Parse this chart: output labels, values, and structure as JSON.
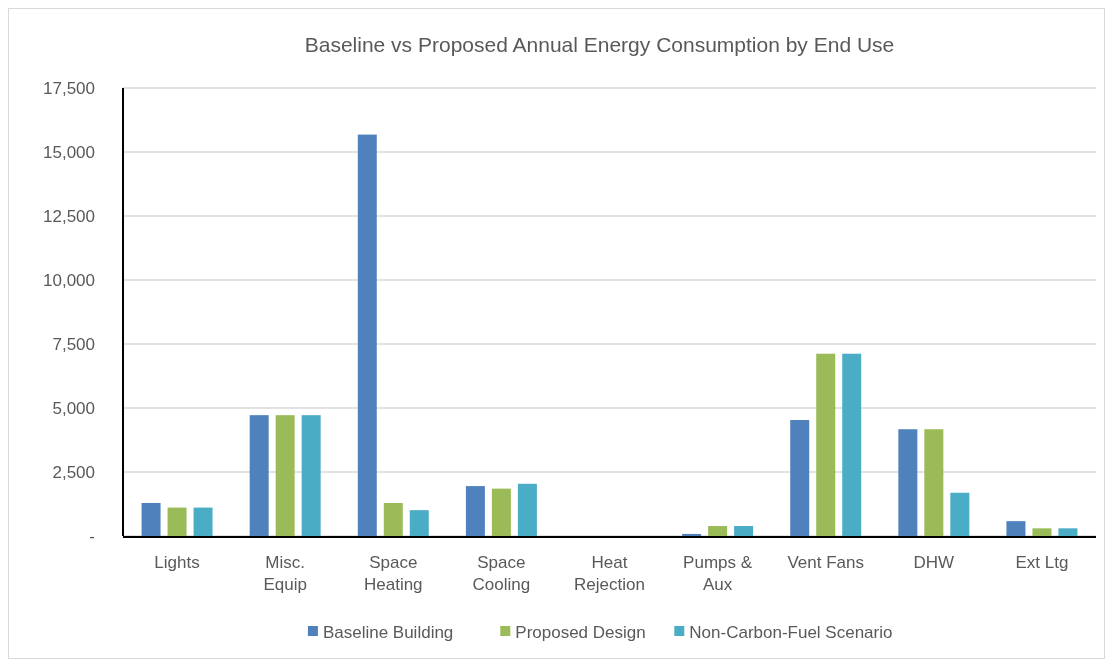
{
  "chart_data": {
    "type": "bar",
    "title": "Baseline vs Proposed Annual Energy Consumption by End Use",
    "categories": [
      "Lights",
      "Misc.\nEquip",
      "Space\nHeating",
      "Space\nCooling",
      "Heat\nRejection",
      "Pumps &\nAux",
      "Vent Fans",
      "DHW",
      "Ext Ltg"
    ],
    "series": [
      {
        "name": "Baseline Building",
        "color": "#4f81bd",
        "values": [
          1290,
          4720,
          15680,
          1950,
          0,
          80,
          4530,
          4170,
          580
        ]
      },
      {
        "name": "Proposed Design",
        "color": "#9bbb59",
        "values": [
          1110,
          4720,
          1290,
          1850,
          0,
          390,
          7120,
          4170,
          300
        ]
      },
      {
        "name": "Non-Carbon-Fuel Scenario",
        "color": "#4bacc6",
        "values": [
          1110,
          4720,
          1010,
          2040,
          0,
          390,
          7120,
          1690,
          300
        ]
      }
    ],
    "ylim": [
      0,
      17500
    ],
    "yticks": [
      {
        "value": 0,
        "label": "-"
      },
      {
        "value": 2500,
        "label": "2,500"
      },
      {
        "value": 5000,
        "label": "5,000"
      },
      {
        "value": 7500,
        "label": "7,500"
      },
      {
        "value": 10000,
        "label": "10,000"
      },
      {
        "value": 12500,
        "label": "12,500"
      },
      {
        "value": 15000,
        "label": "15,000"
      },
      {
        "value": 17500,
        "label": "17,500"
      }
    ],
    "grid": "y",
    "legend": "bottom"
  }
}
